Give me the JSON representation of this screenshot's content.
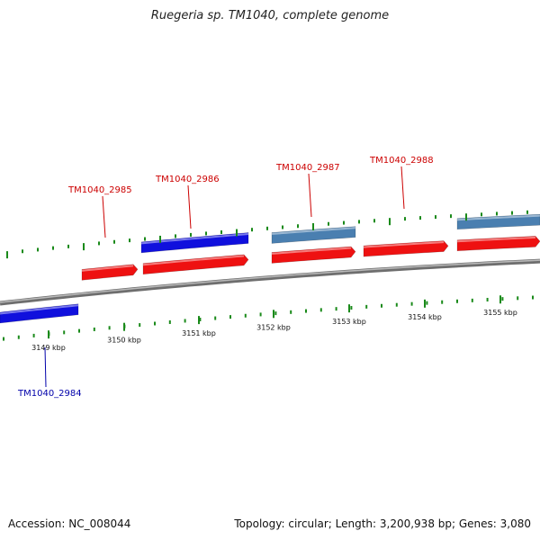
{
  "title": "Ruegeria sp. TM1040, complete genome",
  "accession": "Accession: NC_008044",
  "summary": "Topology: circular; Length: 3,200,938 bp; Genes: 3,080",
  "colors": {
    "backbone": "#8c8c8c",
    "forward_gene": "#ee1111",
    "reverse_gene": "#1010dd",
    "reverse_gene_alt": "#4a7fb0",
    "tick": "#1a8a1a",
    "forward_label": "#cc0000",
    "reverse_label": "#0000aa"
  },
  "scale": {
    "unit": "kbp",
    "ticks": [
      {
        "label": "3149 kbp"
      },
      {
        "label": "3150 kbp"
      },
      {
        "label": "3151 kbp"
      },
      {
        "label": "3152 kbp"
      },
      {
        "label": "3153 kbp"
      },
      {
        "label": "3154 kbp"
      },
      {
        "label": "3155 kbp"
      }
    ]
  },
  "genes": [
    {
      "id": "TM1040_2984",
      "labeled": true
    },
    {
      "id": "TM1040_2985",
      "labeled": true
    },
    {
      "id": "TM1040_2986",
      "labeled": true
    },
    {
      "id": "TM1040_2987",
      "labeled": true
    },
    {
      "id": "TM1040_2988",
      "labeled": true
    }
  ]
}
